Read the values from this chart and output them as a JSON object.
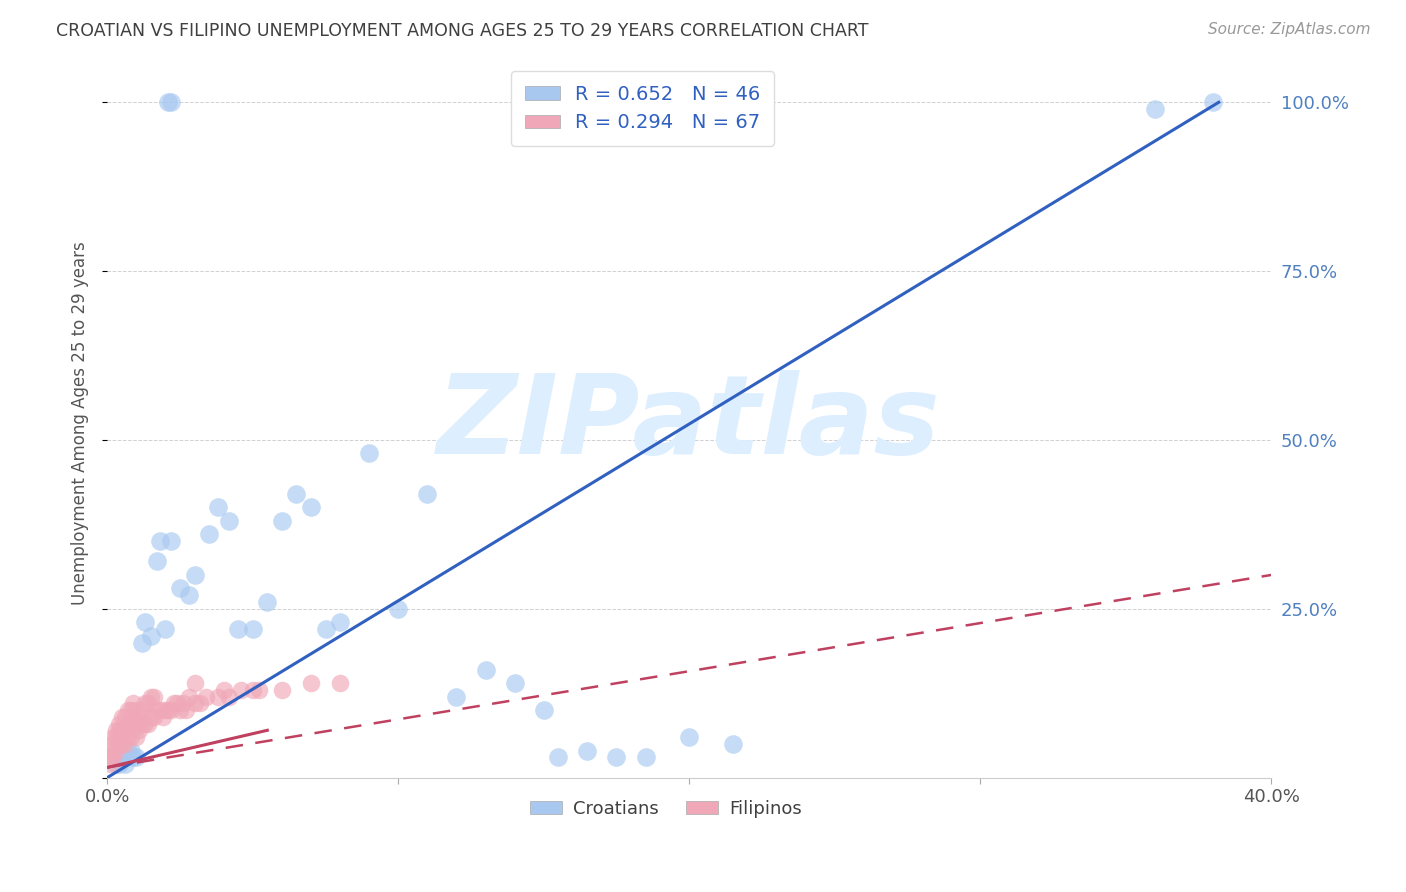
{
  "title": "CROATIAN VS FILIPINO UNEMPLOYMENT AMONG AGES 25 TO 29 YEARS CORRELATION CHART",
  "source": "Source: ZipAtlas.com",
  "ylabel": "Unemployment Among Ages 25 to 29 years",
  "xlim": [
    0.0,
    0.4
  ],
  "ylim": [
    0.0,
    1.05
  ],
  "yticks": [
    0.0,
    0.25,
    0.5,
    0.75,
    1.0
  ],
  "xticks": [
    0.0,
    0.1,
    0.2,
    0.3,
    0.4
  ],
  "xtick_labels": [
    "0.0%",
    "",
    "",
    "",
    "40.0%"
  ],
  "ytick_labels_right": [
    "",
    "25.0%",
    "50.0%",
    "75.0%",
    "100.0%"
  ],
  "croatian_R": 0.652,
  "croatian_N": 46,
  "filipino_R": 0.294,
  "filipino_N": 67,
  "croatian_color": "#a8c8f0",
  "filipino_color": "#f0a8b8",
  "trendline_croatian_color": "#3060c0",
  "trendline_filipino_color": "#c04060",
  "background_color": "#ffffff",
  "grid_color": "#cccccc",
  "title_color": "#404040",
  "axis_label_color": "#555555",
  "right_tick_color": "#5080c0",
  "watermark_color": "#ddeeff",
  "legend_text_color": "#3060c0",
  "croatian_trendline": [
    0.0,
    0.0,
    0.382,
    1.0
  ],
  "filipino_trendline_solid": [
    0.0,
    0.015,
    0.055,
    0.07
  ],
  "filipino_trendline_dashed": [
    0.0,
    0.015,
    0.4,
    0.3
  ],
  "croatian_x": [
    0.021,
    0.022,
    0.003,
    0.004,
    0.005,
    0.006,
    0.007,
    0.008,
    0.009,
    0.01,
    0.012,
    0.013,
    0.015,
    0.017,
    0.018,
    0.02,
    0.022,
    0.025,
    0.028,
    0.03,
    0.035,
    0.038,
    0.042,
    0.045,
    0.05,
    0.055,
    0.06,
    0.065,
    0.07,
    0.075,
    0.08,
    0.09,
    0.1,
    0.11,
    0.12,
    0.14,
    0.155,
    0.165,
    0.175,
    0.185,
    0.2,
    0.215,
    0.13,
    0.15,
    0.38,
    0.36
  ],
  "croatian_y": [
    1.0,
    1.0,
    0.02,
    0.02,
    0.03,
    0.02,
    0.04,
    0.04,
    0.03,
    0.03,
    0.2,
    0.23,
    0.21,
    0.32,
    0.35,
    0.22,
    0.35,
    0.28,
    0.27,
    0.3,
    0.36,
    0.4,
    0.38,
    0.22,
    0.22,
    0.26,
    0.38,
    0.42,
    0.4,
    0.22,
    0.23,
    0.48,
    0.25,
    0.42,
    0.12,
    0.14,
    0.03,
    0.04,
    0.03,
    0.03,
    0.06,
    0.05,
    0.16,
    0.1,
    1.0,
    0.99
  ],
  "filipino_x": [
    0.001,
    0.001,
    0.001,
    0.002,
    0.002,
    0.002,
    0.003,
    0.003,
    0.003,
    0.004,
    0.004,
    0.004,
    0.005,
    0.005,
    0.005,
    0.006,
    0.006,
    0.006,
    0.007,
    0.007,
    0.007,
    0.008,
    0.008,
    0.008,
    0.009,
    0.009,
    0.009,
    0.01,
    0.01,
    0.01,
    0.011,
    0.011,
    0.012,
    0.012,
    0.013,
    0.013,
    0.014,
    0.014,
    0.015,
    0.015,
    0.016,
    0.016,
    0.017,
    0.018,
    0.019,
    0.02,
    0.021,
    0.022,
    0.023,
    0.024,
    0.025,
    0.026,
    0.027,
    0.028,
    0.03,
    0.032,
    0.034,
    0.038,
    0.042,
    0.046,
    0.052,
    0.06,
    0.07,
    0.08,
    0.03,
    0.04,
    0.05
  ],
  "filipino_y": [
    0.02,
    0.03,
    0.04,
    0.03,
    0.05,
    0.06,
    0.04,
    0.06,
    0.07,
    0.05,
    0.07,
    0.08,
    0.05,
    0.07,
    0.09,
    0.05,
    0.07,
    0.09,
    0.06,
    0.08,
    0.1,
    0.06,
    0.08,
    0.1,
    0.07,
    0.09,
    0.11,
    0.06,
    0.08,
    0.1,
    0.07,
    0.09,
    0.08,
    0.1,
    0.08,
    0.11,
    0.08,
    0.11,
    0.09,
    0.12,
    0.09,
    0.12,
    0.1,
    0.1,
    0.09,
    0.1,
    0.1,
    0.1,
    0.11,
    0.11,
    0.1,
    0.11,
    0.1,
    0.12,
    0.11,
    0.11,
    0.12,
    0.12,
    0.12,
    0.13,
    0.13,
    0.13,
    0.14,
    0.14,
    0.14,
    0.13,
    0.13
  ]
}
